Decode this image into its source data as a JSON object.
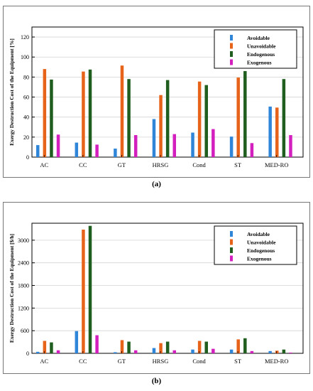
{
  "captions": [
    "(a)",
    "(b)"
  ],
  "colors": {
    "Avoidable": "#2f86d8",
    "Unavoidable": "#e8631a",
    "Endogenous": "#1f5e1f",
    "Exogenous": "#d41fbf"
  },
  "chart_data": [
    {
      "type": "bar",
      "categories": [
        "AC",
        "CC",
        "GT",
        "HRSG",
        "Cond",
        "ST",
        "MED-RO"
      ],
      "series": [
        {
          "name": "Avoidable",
          "values": [
            12,
            14.5,
            8.5,
            38,
            24.5,
            20.5,
            50.5
          ]
        },
        {
          "name": "Unavoidable",
          "values": [
            88,
            85.5,
            91.5,
            62,
            75.5,
            79.5,
            49.5
          ]
        },
        {
          "name": "Endogenous",
          "values": [
            77.5,
            87.5,
            78,
            77,
            72,
            86,
            78
          ]
        },
        {
          "name": "Exogenous",
          "values": [
            22.5,
            12.5,
            22,
            23,
            28,
            14,
            22
          ]
        }
      ],
      "title": "",
      "xlabel": "",
      "ylabel": "Exergy Destruction Cost of the Equipment [%]",
      "ylim": [
        0,
        130
      ],
      "yticks": [
        0,
        20,
        40,
        60,
        80,
        100,
        120
      ],
      "legend": "top-right"
    },
    {
      "type": "bar",
      "categories": [
        "AC",
        "CC",
        "GT",
        "HRSG",
        "Cond",
        "ST",
        "MED-RO"
      ],
      "series": [
        {
          "name": "Avoidable",
          "values": [
            40,
            590,
            30,
            140,
            100,
            100,
            60
          ]
        },
        {
          "name": "Unavoidable",
          "values": [
            330,
            3280,
            350,
            270,
            330,
            370,
            70
          ]
        },
        {
          "name": "Endogenous",
          "values": [
            290,
            3380,
            310,
            310,
            310,
            400,
            100
          ]
        },
        {
          "name": "Exogenous",
          "values": [
            80,
            480,
            80,
            80,
            120,
            60,
            20
          ]
        }
      ],
      "title": "",
      "xlabel": "",
      "ylabel": "Exergy Destruction Cost of the Equipment [$/h]",
      "ylim": [
        0,
        3450
      ],
      "yticks": [
        0,
        600,
        1200,
        1800,
        2400,
        3000
      ],
      "legend": "top-right"
    }
  ]
}
